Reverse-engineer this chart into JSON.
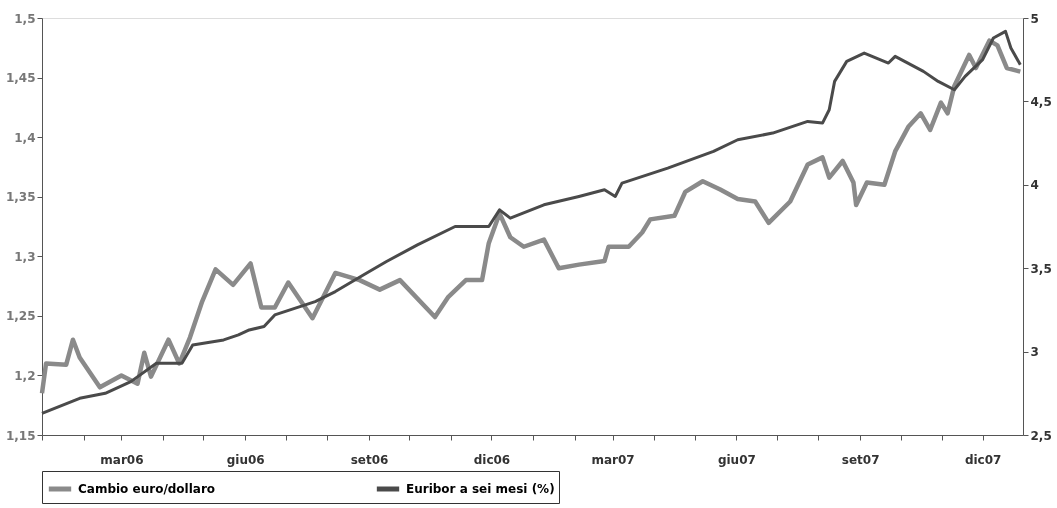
{
  "chart_data": {
    "type": "line",
    "xlim": [
      "2006-01-01",
      "2007-12-31"
    ],
    "xticks": [
      {
        "value": "2006-01-01",
        "label": null
      },
      {
        "value": "2006-02-01",
        "label": null
      },
      {
        "value": "2006-03-01",
        "label": "mar06"
      },
      {
        "value": "2006-04-01",
        "label": null
      },
      {
        "value": "2006-05-01",
        "label": null
      },
      {
        "value": "2006-06-01",
        "label": "giu06"
      },
      {
        "value": "2006-07-01",
        "label": null
      },
      {
        "value": "2006-08-01",
        "label": null
      },
      {
        "value": "2006-09-01",
        "label": "set06"
      },
      {
        "value": "2006-10-01",
        "label": null
      },
      {
        "value": "2006-11-01",
        "label": null
      },
      {
        "value": "2006-12-01",
        "label": "dic06"
      },
      {
        "value": "2007-01-01",
        "label": null
      },
      {
        "value": "2007-02-01",
        "label": null
      },
      {
        "value": "2007-03-01",
        "label": "mar07"
      },
      {
        "value": "2007-04-01",
        "label": null
      },
      {
        "value": "2007-05-01",
        "label": null
      },
      {
        "value": "2007-06-01",
        "label": "giu07"
      },
      {
        "value": "2007-07-01",
        "label": null
      },
      {
        "value": "2007-08-01",
        "label": null
      },
      {
        "value": "2007-09-01",
        "label": "set07"
      },
      {
        "value": "2007-10-01",
        "label": null
      },
      {
        "value": "2007-11-01",
        "label": null
      },
      {
        "value": "2007-12-01",
        "label": "dic07"
      }
    ],
    "ylim": [
      1.15,
      1.5
    ],
    "yticks": [
      {
        "value": 1.15,
        "label": "1,15"
      },
      {
        "value": 1.2,
        "label": "1,2"
      },
      {
        "value": 1.25,
        "label": "1,25"
      },
      {
        "value": 1.3,
        "label": "1,3"
      },
      {
        "value": 1.35,
        "label": "1,35"
      },
      {
        "value": 1.4,
        "label": "1,4"
      },
      {
        "value": 1.45,
        "label": "1,45"
      },
      {
        "value": 1.5,
        "label": "1,5"
      }
    ],
    "y2lim": [
      2.5,
      5
    ],
    "y2ticks": [
      {
        "value": 2.5,
        "label": "2,5"
      },
      3,
      {
        "value": 3.5,
        "label": "3,5"
      },
      4,
      {
        "value": 4.5,
        "label": "4,5"
      },
      5
    ],
    "grid": false,
    "legend": "bottom",
    "marker": "none",
    "line_style": "solid",
    "series": [
      {
        "name": "Cambio euro/dollaro",
        "color": "#8a8a8a",
        "x": [
          "2006-01-01",
          "2006-01-04",
          "2006-01-19",
          "2006-01-24",
          "2006-01-29",
          "2006-02-13",
          "2006-03-01",
          "2006-03-13",
          "2006-03-18",
          "2006-03-23",
          "2006-04-05",
          "2006-04-13",
          "2006-04-21",
          "2006-04-30",
          "2006-05-10",
          "2006-05-23",
          "2006-06-05",
          "2006-06-13",
          "2006-06-23",
          "2006-07-03",
          "2006-07-21",
          "2006-08-07",
          "2006-08-25",
          "2006-09-09",
          "2006-09-24",
          "2006-10-20",
          "2006-10-30",
          "2006-11-12",
          "2006-11-24",
          "2006-11-29",
          "2006-12-07",
          "2006-12-15",
          "2006-12-25",
          "2007-01-09",
          "2007-01-20",
          "2007-02-04",
          "2007-02-23",
          "2007-02-26",
          "2007-03-13",
          "2007-03-23",
          "2007-03-29",
          "2007-04-16",
          "2007-04-24",
          "2007-05-07",
          "2007-05-20",
          "2007-06-02",
          "2007-06-15",
          "2007-06-25",
          "2007-07-11",
          "2007-07-24",
          "2007-08-04",
          "2007-08-09",
          "2007-08-19",
          "2007-08-27",
          "2007-08-29",
          "2007-09-06",
          "2007-09-19",
          "2007-09-27",
          "2007-10-07",
          "2007-10-16",
          "2007-10-23",
          "2007-10-31",
          "2007-11-05",
          "2007-11-10",
          "2007-11-21",
          "2007-11-26",
          "2007-12-06",
          "2007-12-12",
          "2007-12-19",
          "2007-12-29"
        ],
        "values": [
          1.185,
          1.21,
          1.209,
          1.23,
          1.215,
          1.19,
          1.2,
          1.193,
          1.219,
          1.199,
          1.23,
          1.21,
          1.232,
          1.262,
          1.289,
          1.276,
          1.294,
          1.257,
          1.257,
          1.278,
          1.248,
          1.286,
          1.28,
          1.272,
          1.28,
          1.249,
          1.266,
          1.28,
          1.28,
          1.311,
          1.336,
          1.316,
          1.308,
          1.314,
          1.29,
          1.293,
          1.296,
          1.308,
          1.308,
          1.32,
          1.331,
          1.334,
          1.354,
          1.363,
          1.356,
          1.348,
          1.346,
          1.328,
          1.346,
          1.377,
          1.383,
          1.366,
          1.38,
          1.362,
          1.343,
          1.362,
          1.36,
          1.388,
          1.409,
          1.42,
          1.406,
          1.429,
          1.42,
          1.443,
          1.469,
          1.458,
          1.481,
          1.477,
          1.458,
          1.455
        ]
      },
      {
        "name": "Euribor a sei mesi (%)",
        "color": "#4a4a4a",
        "axis": "y2",
        "x": [
          "2006-01-01",
          "2006-01-29",
          "2006-02-17",
          "2006-03-08",
          "2006-03-27",
          "2006-04-15",
          "2006-04-23",
          "2006-05-16",
          "2006-05-27",
          "2006-06-04",
          "2006-06-15",
          "2006-06-23",
          "2006-07-23",
          "2006-08-07",
          "2006-08-30",
          "2006-09-14",
          "2006-10-07",
          "2006-11-04",
          "2006-11-29",
          "2006-12-07",
          "2006-12-15",
          "2007-01-09",
          "2007-02-04",
          "2007-02-23",
          "2007-03-03",
          "2007-03-08",
          "2007-04-11",
          "2007-05-15",
          "2007-06-02",
          "2007-06-28",
          "2007-07-24",
          "2007-08-04",
          "2007-08-09",
          "2007-08-13",
          "2007-08-22",
          "2007-09-04",
          "2007-09-22",
          "2007-09-27",
          "2007-10-18",
          "2007-10-29",
          "2007-11-10",
          "2007-11-18",
          "2007-12-01",
          "2007-12-09",
          "2007-12-18",
          "2007-12-22",
          "2007-12-29"
        ],
        "values": [
          2.63,
          2.72,
          2.75,
          2.82,
          2.93,
          2.93,
          3.04,
          3.07,
          3.1,
          3.13,
          3.15,
          3.22,
          3.3,
          3.36,
          3.47,
          3.54,
          3.64,
          3.75,
          3.75,
          3.85,
          3.8,
          3.88,
          3.93,
          3.97,
          3.93,
          4.01,
          4.1,
          4.2,
          4.27,
          4.31,
          4.38,
          4.37,
          4.45,
          4.62,
          4.74,
          4.79,
          4.73,
          4.77,
          4.68,
          4.62,
          4.57,
          4.65,
          4.75,
          4.88,
          4.92,
          4.82,
          4.72
        ]
      }
    ]
  }
}
